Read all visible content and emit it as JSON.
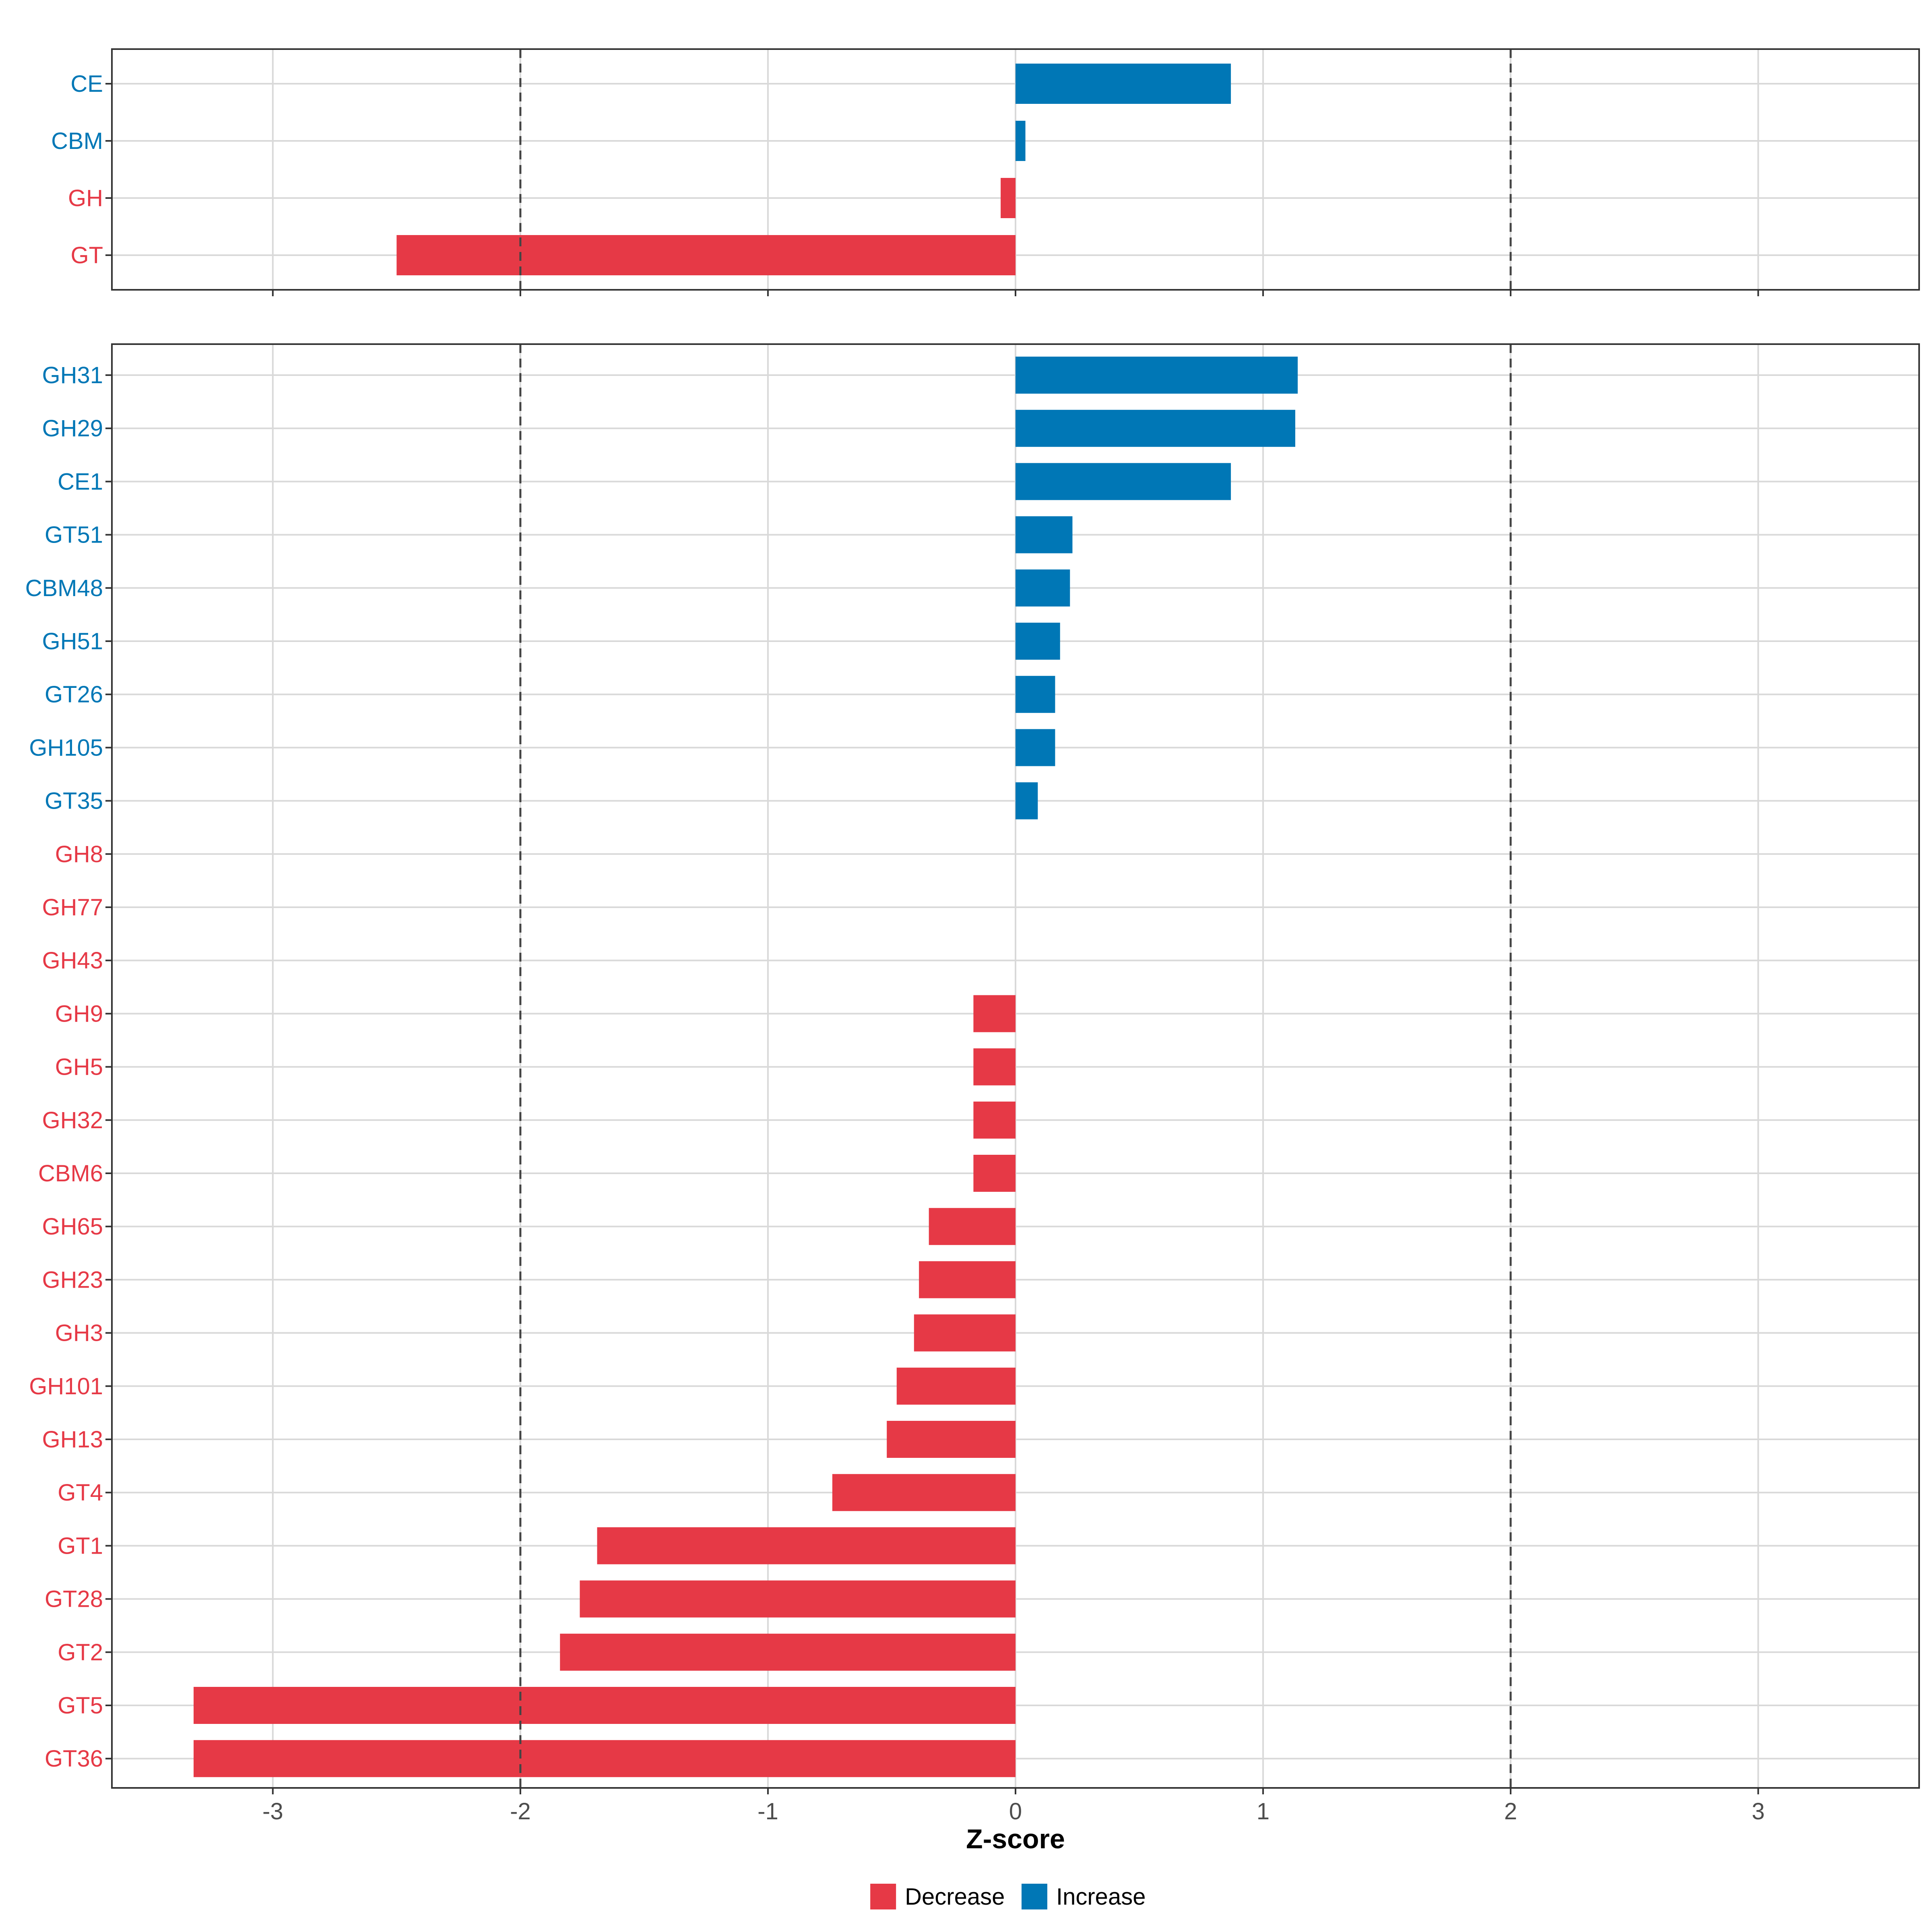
{
  "chart_data": [
    {
      "id": "top",
      "type": "bar",
      "orientation": "horizontal",
      "categories": [
        "CE",
        "CBM",
        "GH",
        "GT"
      ],
      "values": [
        0.87,
        0.04,
        -0.06,
        -2.5
      ],
      "xlim": [
        -3.65,
        3.65
      ],
      "x_ticks": [
        -3,
        -2,
        -1,
        0,
        1,
        2,
        3
      ],
      "reference_lines": [
        -2,
        2
      ],
      "grid": true
    },
    {
      "id": "bottom",
      "type": "bar",
      "orientation": "horizontal",
      "categories": [
        "GH31",
        "GH29",
        "CE1",
        "GT51",
        "CBM48",
        "GH51",
        "GT26",
        "GH105",
        "GT35",
        "GH8",
        "GH77",
        "GH43",
        "GH9",
        "GH5",
        "GH32",
        "CBM6",
        "GH65",
        "GH23",
        "GH3",
        "GH101",
        "GH13",
        "GT4",
        "GT1",
        "GT28",
        "GT2",
        "GT5",
        "GT36"
      ],
      "values": [
        1.14,
        1.13,
        0.87,
        0.23,
        0.22,
        0.18,
        0.16,
        0.16,
        0.09,
        0,
        0,
        0,
        -0.17,
        -0.17,
        -0.17,
        -0.17,
        -0.35,
        -0.39,
        -0.41,
        -0.48,
        -0.52,
        -0.74,
        -1.69,
        -1.76,
        -1.84,
        -3.32,
        -3.32
      ],
      "xlim": [
        -3.65,
        3.65
      ],
      "x_ticks": [
        -3,
        -2,
        -1,
        0,
        1,
        2,
        3
      ],
      "x_tick_labels": [
        "-3",
        "-2",
        "-1",
        "0",
        "1",
        "2",
        "3"
      ],
      "xlabel": "Z-score",
      "reference_lines": [
        -2,
        2
      ],
      "grid": true
    }
  ],
  "legend": {
    "position": "bottom",
    "items": [
      {
        "label": "Decrease",
        "color": "#e63946"
      },
      {
        "label": "Increase",
        "color": "#0077b6"
      }
    ]
  },
  "colors": {
    "decrease": "#e63946",
    "increase": "#0077b6",
    "grid": "#d9d9d9",
    "panel_border": "#333333",
    "reference_line": "#444444"
  }
}
